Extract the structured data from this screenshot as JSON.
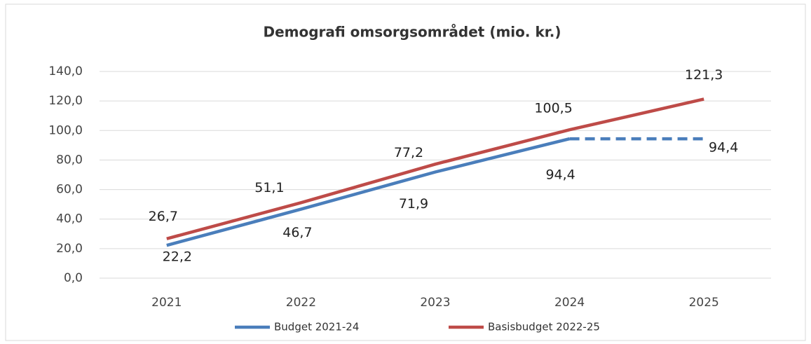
{
  "chart_data": {
    "type": "line",
    "title": "Demografi omsorgsområdet (mio. kr.)",
    "categories": [
      "2021",
      "2022",
      "2023",
      "2024",
      "2025"
    ],
    "series": [
      {
        "name": "Budget 2021-24",
        "color": "#4a7ebb",
        "values": [
          22.2,
          46.7,
          71.9,
          94.4,
          94.4
        ],
        "value_labels": [
          "22,2",
          "46,7",
          "71,9",
          "94,4",
          "94,4"
        ],
        "line_style": [
          "solid",
          "solid",
          "solid",
          "solid",
          "dashed"
        ]
      },
      {
        "name": "Basisbudget 2022-25",
        "color": "#be4b48",
        "values": [
          26.7,
          51.1,
          77.2,
          100.5,
          121.3
        ],
        "value_labels": [
          "26,7",
          "51,1",
          "77,2",
          "100,5",
          "121,3"
        ],
        "line_style": [
          "solid",
          "solid",
          "solid",
          "solid",
          "solid"
        ]
      }
    ],
    "ylim": [
      0,
      140
    ],
    "yticks": [
      {
        "value": 0,
        "label": "0,0"
      },
      {
        "value": 20,
        "label": "20,0"
      },
      {
        "value": 40,
        "label": "40,0"
      },
      {
        "value": 60,
        "label": "60,0"
      },
      {
        "value": 80,
        "label": "80,0"
      },
      {
        "value": 100,
        "label": "100,0"
      },
      {
        "value": 120,
        "label": "120,0"
      },
      {
        "value": 140,
        "label": "140,0"
      }
    ],
    "grid": true,
    "legend": "bottom"
  }
}
